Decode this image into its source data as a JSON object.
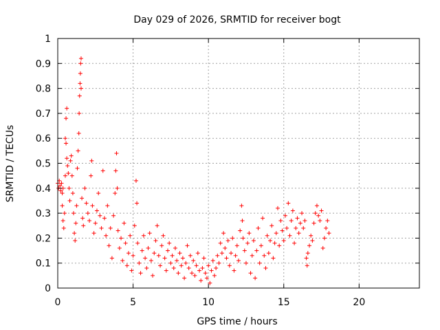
{
  "chart_data": {
    "type": "scatter",
    "title": "Day 029 of 2026, SRMTID for receiver bogt",
    "xlabel": "GPS time / hours",
    "ylabel": "SRMTID / TECUs",
    "xlim": [
      0,
      24
    ],
    "ylim": [
      0,
      1
    ],
    "xticks": [
      0,
      5,
      10,
      15,
      20
    ],
    "xtick_labels": [
      "0",
      "5",
      "10",
      "15",
      "20"
    ],
    "yticks": [
      0,
      0.1,
      0.2,
      0.3,
      0.4,
      0.5,
      0.6,
      0.7,
      0.8,
      0.9,
      1
    ],
    "ytick_labels": [
      "0",
      "0.1",
      "0.2",
      "0.3",
      "0.4",
      "0.5",
      "0.6",
      "0.7",
      "0.8",
      "0.9",
      "1"
    ],
    "grid": true,
    "marker": "+",
    "color": "#ff0000",
    "series": [
      {
        "name": "SRMTID",
        "points": [
          [
            0.0,
            0.42
          ],
          [
            0.05,
            0.4
          ],
          [
            0.1,
            0.43
          ],
          [
            0.15,
            0.41
          ],
          [
            0.2,
            0.39
          ],
          [
            0.25,
            0.42
          ],
          [
            0.3,
            0.38
          ],
          [
            0.35,
            0.4
          ],
          [
            0.3,
            0.33
          ],
          [
            0.35,
            0.27
          ],
          [
            0.4,
            0.24
          ],
          [
            0.45,
            0.3
          ],
          [
            0.5,
            0.45
          ],
          [
            0.5,
            0.6
          ],
          [
            0.55,
            0.68
          ],
          [
            0.6,
            0.72
          ],
          [
            0.55,
            0.58
          ],
          [
            0.6,
            0.52
          ],
          [
            0.65,
            0.49
          ],
          [
            0.7,
            0.46
          ],
          [
            0.75,
            0.4
          ],
          [
            0.8,
            0.35
          ],
          [
            0.85,
            0.51
          ],
          [
            0.9,
            0.53
          ],
          [
            0.95,
            0.45
          ],
          [
            1.0,
            0.38
          ],
          [
            1.05,
            0.3
          ],
          [
            1.1,
            0.22
          ],
          [
            1.15,
            0.19
          ],
          [
            1.2,
            0.26
          ],
          [
            1.25,
            0.33
          ],
          [
            1.3,
            0.48
          ],
          [
            1.35,
            0.55
          ],
          [
            1.4,
            0.62
          ],
          [
            1.42,
            0.7
          ],
          [
            1.45,
            0.77
          ],
          [
            1.48,
            0.82
          ],
          [
            1.5,
            0.86
          ],
          [
            1.52,
            0.9
          ],
          [
            1.55,
            0.92
          ],
          [
            1.55,
            0.8
          ],
          [
            1.6,
            0.36
          ],
          [
            1.65,
            0.28
          ],
          [
            1.7,
            0.25
          ],
          [
            1.8,
            0.4
          ],
          [
            1.9,
            0.34
          ],
          [
            2.0,
            0.3
          ],
          [
            2.1,
            0.27
          ],
          [
            2.2,
            0.45
          ],
          [
            2.25,
            0.51
          ],
          [
            2.3,
            0.33
          ],
          [
            2.4,
            0.22
          ],
          [
            2.5,
            0.26
          ],
          [
            2.6,
            0.31
          ],
          [
            2.7,
            0.38
          ],
          [
            2.8,
            0.29
          ],
          [
            2.9,
            0.24
          ],
          [
            3.0,
            0.47
          ],
          [
            3.1,
            0.28
          ],
          [
            3.2,
            0.21
          ],
          [
            3.3,
            0.33
          ],
          [
            3.4,
            0.17
          ],
          [
            3.5,
            0.24
          ],
          [
            3.6,
            0.12
          ],
          [
            3.7,
            0.29
          ],
          [
            3.8,
            0.38
          ],
          [
            3.85,
            0.47
          ],
          [
            3.9,
            0.54
          ],
          [
            3.95,
            0.4
          ],
          [
            4.0,
            0.23
          ],
          [
            4.1,
            0.16
          ],
          [
            4.2,
            0.2
          ],
          [
            4.3,
            0.11
          ],
          [
            4.4,
            0.26
          ],
          [
            4.5,
            0.18
          ],
          [
            4.6,
            0.09
          ],
          [
            4.7,
            0.14
          ],
          [
            4.8,
            0.21
          ],
          [
            4.9,
            0.07
          ],
          [
            5.0,
            0.13
          ],
          [
            5.1,
            0.25
          ],
          [
            5.2,
            0.43
          ],
          [
            5.25,
            0.34
          ],
          [
            5.3,
            0.18
          ],
          [
            5.4,
            0.1
          ],
          [
            5.5,
            0.06
          ],
          [
            5.6,
            0.15
          ],
          [
            5.7,
            0.21
          ],
          [
            5.8,
            0.12
          ],
          [
            5.9,
            0.08
          ],
          [
            6.0,
            0.16
          ],
          [
            6.1,
            0.22
          ],
          [
            6.2,
            0.11
          ],
          [
            6.3,
            0.05
          ],
          [
            6.4,
            0.14
          ],
          [
            6.5,
            0.19
          ],
          [
            6.6,
            0.25
          ],
          [
            6.7,
            0.13
          ],
          [
            6.8,
            0.09
          ],
          [
            6.9,
            0.17
          ],
          [
            7.0,
            0.21
          ],
          [
            7.1,
            0.12
          ],
          [
            7.2,
            0.07
          ],
          [
            7.3,
            0.15
          ],
          [
            7.4,
            0.18
          ],
          [
            7.5,
            0.1
          ],
          [
            7.6,
            0.13
          ],
          [
            7.7,
            0.08
          ],
          [
            7.8,
            0.16
          ],
          [
            7.9,
            0.11
          ],
          [
            8.0,
            0.06
          ],
          [
            8.1,
            0.14
          ],
          [
            8.2,
            0.09
          ],
          [
            8.3,
            0.12
          ],
          [
            8.4,
            0.04
          ],
          [
            8.5,
            0.1
          ],
          [
            8.6,
            0.17
          ],
          [
            8.7,
            0.08
          ],
          [
            8.8,
            0.13
          ],
          [
            8.9,
            0.06
          ],
          [
            9.0,
            0.11
          ],
          [
            9.1,
            0.05
          ],
          [
            9.2,
            0.09
          ],
          [
            9.3,
            0.14
          ],
          [
            9.4,
            0.07
          ],
          [
            9.5,
            0.03
          ],
          [
            9.6,
            0.08
          ],
          [
            9.7,
            0.12
          ],
          [
            9.8,
            0.06
          ],
          [
            9.9,
            0.04
          ],
          [
            10.0,
            0.09
          ],
          [
            10.1,
            0.02
          ],
          [
            10.2,
            0.07
          ],
          [
            10.3,
            0.11
          ],
          [
            10.4,
            0.05
          ],
          [
            10.5,
            0.08
          ],
          [
            10.6,
            0.13
          ],
          [
            10.7,
            0.1
          ],
          [
            10.8,
            0.18
          ],
          [
            10.9,
            0.14
          ],
          [
            11.0,
            0.22
          ],
          [
            11.1,
            0.16
          ],
          [
            11.2,
            0.12
          ],
          [
            11.3,
            0.19
          ],
          [
            11.4,
            0.09
          ],
          [
            11.5,
            0.14
          ],
          [
            11.6,
            0.2
          ],
          [
            11.7,
            0.07
          ],
          [
            11.8,
            0.13
          ],
          [
            11.9,
            0.17
          ],
          [
            12.0,
            0.11
          ],
          [
            12.1,
            0.23
          ],
          [
            12.2,
            0.33
          ],
          [
            12.25,
            0.27
          ],
          [
            12.3,
            0.2
          ],
          [
            12.4,
            0.15
          ],
          [
            12.5,
            0.1
          ],
          [
            12.6,
            0.18
          ],
          [
            12.7,
            0.22
          ],
          [
            12.8,
            0.06
          ],
          [
            12.9,
            0.13
          ],
          [
            13.0,
            0.19
          ],
          [
            13.1,
            0.04
          ],
          [
            13.2,
            0.15
          ],
          [
            13.3,
            0.24
          ],
          [
            13.4,
            0.1
          ],
          [
            13.5,
            0.17
          ],
          [
            13.6,
            0.28
          ],
          [
            13.7,
            0.13
          ],
          [
            13.8,
            0.08
          ],
          [
            13.9,
            0.21
          ],
          [
            14.0,
            0.14
          ],
          [
            14.1,
            0.19
          ],
          [
            14.2,
            0.25
          ],
          [
            14.3,
            0.12
          ],
          [
            14.4,
            0.18
          ],
          [
            14.5,
            0.22
          ],
          [
            14.6,
            0.32
          ],
          [
            14.7,
            0.17
          ],
          [
            14.8,
            0.27
          ],
          [
            14.9,
            0.23
          ],
          [
            15.0,
            0.19
          ],
          [
            15.1,
            0.29
          ],
          [
            15.2,
            0.24
          ],
          [
            15.3,
            0.34
          ],
          [
            15.4,
            0.21
          ],
          [
            15.5,
            0.27
          ],
          [
            15.6,
            0.31
          ],
          [
            15.7,
            0.18
          ],
          [
            15.8,
            0.24
          ],
          [
            15.9,
            0.28
          ],
          [
            16.0,
            0.22
          ],
          [
            16.1,
            0.26
          ],
          [
            16.2,
            0.3
          ],
          [
            16.3,
            0.24
          ],
          [
            16.4,
            0.27
          ],
          [
            16.5,
            0.12
          ],
          [
            16.55,
            0.09
          ],
          [
            16.6,
            0.14
          ],
          [
            16.7,
            0.17
          ],
          [
            16.8,
            0.21
          ],
          [
            16.9,
            0.19
          ],
          [
            17.0,
            0.26
          ],
          [
            17.1,
            0.3
          ],
          [
            17.2,
            0.33
          ],
          [
            17.3,
            0.29
          ],
          [
            17.4,
            0.27
          ],
          [
            17.5,
            0.31
          ],
          [
            17.6,
            0.16
          ],
          [
            17.7,
            0.2
          ],
          [
            17.8,
            0.24
          ],
          [
            17.9,
            0.27
          ],
          [
            18.0,
            0.22
          ]
        ]
      }
    ]
  }
}
